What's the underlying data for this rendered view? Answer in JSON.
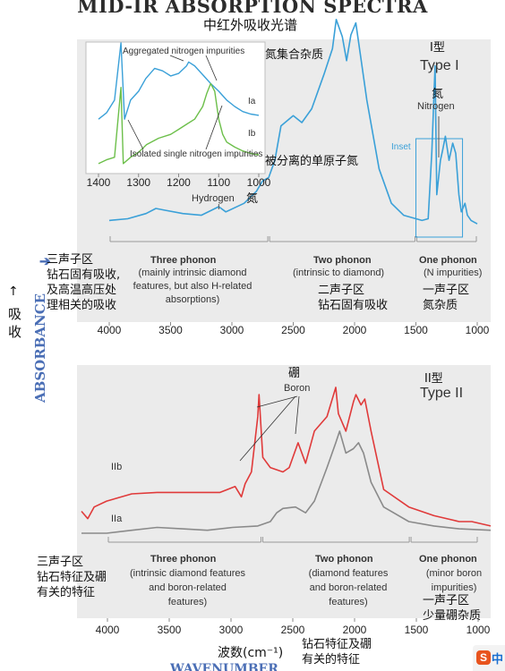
{
  "page": {
    "title": "MID-IR ABSORPTION SPECTRA",
    "title_zh": "中红外吸收光谱",
    "y_label": "ABSORBANCE",
    "y_label_zh_arrow": "↑",
    "y_label_zh_1": "吸",
    "y_label_zh_2": "收",
    "x_label_zh": "波数(cm⁻¹)",
    "x_label_partial": "WAVENUMBER",
    "ime_badge": "中"
  },
  "chart_data": [
    {
      "type": "line",
      "name": "Type I",
      "xlim": [
        4000,
        1000
      ],
      "x_ticks": [
        "4000",
        "3500",
        "3000",
        "2500",
        "2000",
        "1500",
        "1000"
      ],
      "series": [
        {
          "name": "",
          "color": "#3aa0d8",
          "x": [
            4000,
            3850,
            3700,
            3620,
            3550,
            3400,
            3250,
            3107,
            3050,
            2900,
            2800,
            2750,
            2700,
            2650,
            2600,
            2500,
            2430,
            2350,
            2250,
            2180,
            2150,
            2100,
            2065,
            2030,
            1990,
            1950,
            1900,
            1800,
            1700,
            1600,
            1450,
            1400,
            1370,
            1344,
            1330,
            1300,
            1282,
            1260,
            1230,
            1200,
            1175,
            1150,
            1130,
            1100,
            1080,
            1050,
            1000
          ],
          "y": [
            0.05,
            0.06,
            0.09,
            0.12,
            0.11,
            0.09,
            0.08,
            0.13,
            0.1,
            0.15,
            0.22,
            0.28,
            0.3,
            0.4,
            0.6,
            0.66,
            0.62,
            0.7,
            0.9,
            1.05,
            1.22,
            1.12,
            0.98,
            1.13,
            1.2,
            1.0,
            0.75,
            0.35,
            0.15,
            0.08,
            0.05,
            0.06,
            0.45,
            0.95,
            0.2,
            0.4,
            0.46,
            0.54,
            0.4,
            0.5,
            0.44,
            0.2,
            0.1,
            0.15,
            0.08,
            0.05,
            0.03
          ]
        }
      ],
      "labels": {
        "type_zh": "I型",
        "type": "Type I",
        "nitrogen_zh": "氮",
        "nitrogen": "Nitrogen",
        "aggregated_zh": "氮集合杂质",
        "isolated_zh": "被分离的单原子氮",
        "hydrogen": "Hydrogen",
        "hydrogen_zh": "氮",
        "inset_box": "Inset"
      },
      "inset": {
        "xlim": [
          1400,
          1000
        ],
        "x_ticks": [
          "1400",
          "1300",
          "1200",
          "1100",
          "1000"
        ],
        "title_top": "Aggregated nitrogen impurities",
        "title_bottom": "Isolated single nitrogen impurities",
        "series": [
          {
            "name": "Ia",
            "color": "#3aa0d8",
            "x": [
              1400,
              1380,
              1360,
              1344,
              1335,
              1320,
              1300,
              1282,
              1260,
              1240,
              1220,
              1200,
              1180,
              1175,
              1160,
              1140,
              1120,
              1100,
              1080,
              1060,
              1040,
              1020,
              1000
            ],
            "y": [
              0.4,
              0.45,
              0.55,
              1.0,
              0.4,
              0.55,
              0.62,
              0.72,
              0.8,
              0.78,
              0.74,
              0.76,
              0.82,
              0.85,
              0.82,
              0.75,
              0.68,
              0.62,
              0.55,
              0.5,
              0.46,
              0.44,
              0.43
            ]
          },
          {
            "name": "Ib",
            "color": "#6cbf4a",
            "x": [
              1400,
              1380,
              1360,
              1344,
              1338,
              1320,
              1300,
              1280,
              1250,
              1220,
              1200,
              1180,
              1160,
              1140,
              1130,
              1120,
              1110,
              1100,
              1090,
              1080,
              1060,
              1040,
              1020,
              1000
            ],
            "y": [
              0.05,
              0.08,
              0.1,
              0.65,
              0.05,
              0.1,
              0.14,
              0.2,
              0.25,
              0.28,
              0.32,
              0.36,
              0.4,
              0.5,
              0.6,
              0.68,
              0.62,
              0.4,
              0.28,
              0.22,
              0.18,
              0.15,
              0.13,
              0.12
            ]
          }
        ]
      },
      "regions": [
        {
          "name": "Three phonon",
          "range": [
            4000,
            2700
          ],
          "desc": "(mainly intrinsic diamond\nfeatures, but also H-related\nabsorptions)",
          "zh": "三声子区\n钻石固有吸收,\n及高温高压处\n理相关的吸收"
        },
        {
          "name": "Two phonon",
          "range": [
            2700,
            1500
          ],
          "desc": "(intrinsic to diamond)",
          "zh": "二声子区\n钻石固有吸收"
        },
        {
          "name": "One phonon",
          "range": [
            1500,
            1000
          ],
          "desc": "(N impurities)",
          "zh": "一声子区\n氮杂质"
        }
      ]
    },
    {
      "type": "line",
      "name": "Type II",
      "xlim": [
        4200,
        950
      ],
      "x_ticks": [
        "4000",
        "3500",
        "3000",
        "2500",
        "2000",
        "1500",
        "1000"
      ],
      "series": [
        {
          "name": "IIb",
          "color": "#e03a3a",
          "x": [
            4200,
            4150,
            4100,
            4000,
            3800,
            3600,
            3500,
            3300,
            3100,
            2980,
            2930,
            2900,
            2850,
            2800,
            2790,
            2760,
            2700,
            2600,
            2550,
            2480,
            2420,
            2350,
            2250,
            2180,
            2160,
            2100,
            2040,
            2020,
            1980,
            1950,
            1900,
            1800,
            1600,
            1400,
            1200,
            1100,
            950
          ],
          "y": [
            0.15,
            0.1,
            0.18,
            0.22,
            0.27,
            0.28,
            0.28,
            0.28,
            0.28,
            0.32,
            0.25,
            0.34,
            0.42,
            0.8,
            0.95,
            0.52,
            0.45,
            0.42,
            0.45,
            0.62,
            0.48,
            0.7,
            0.8,
            1.0,
            0.82,
            0.7,
            0.9,
            0.95,
            0.88,
            0.92,
            0.7,
            0.3,
            0.18,
            0.12,
            0.08,
            0.08,
            0.05
          ]
        },
        {
          "name": "IIa",
          "color": "#8a8a8a",
          "x": [
            4200,
            4000,
            3800,
            3600,
            3400,
            3200,
            3000,
            2800,
            2700,
            2650,
            2600,
            2500,
            2420,
            2350,
            2250,
            2180,
            2150,
            2100,
            2040,
            2000,
            1960,
            1900,
            1800,
            1600,
            1400,
            1200,
            950
          ],
          "y": [
            0.0,
            0.0,
            0.02,
            0.04,
            0.03,
            0.02,
            0.04,
            0.05,
            0.08,
            0.14,
            0.17,
            0.18,
            0.14,
            0.22,
            0.45,
            0.62,
            0.7,
            0.55,
            0.58,
            0.62,
            0.55,
            0.35,
            0.18,
            0.08,
            0.05,
            0.03,
            0.02
          ]
        }
      ],
      "labels": {
        "type_zh": "II型",
        "type": "Type II",
        "boron_zh": "硼",
        "boron": "Boron"
      },
      "regions": [
        {
          "name": "Three phonon",
          "range": [
            4000,
            2750
          ],
          "desc": "(intrinsic diamond features\nand boron-related\nfeatures)",
          "zh": "三声子区\n钻石特征及硼\n有关的特征"
        },
        {
          "name": "Two phonon",
          "range": [
            2750,
            1550
          ],
          "desc": "(diamond features\nand boron-related\nfeatures)",
          "zh": "钻石特征及硼\n有关的特征"
        },
        {
          "name": "One phonon",
          "range": [
            1550,
            1000
          ],
          "desc": "(minor boron\nimpurities)",
          "zh": "一声子区\n少量硼杂质"
        }
      ]
    }
  ]
}
